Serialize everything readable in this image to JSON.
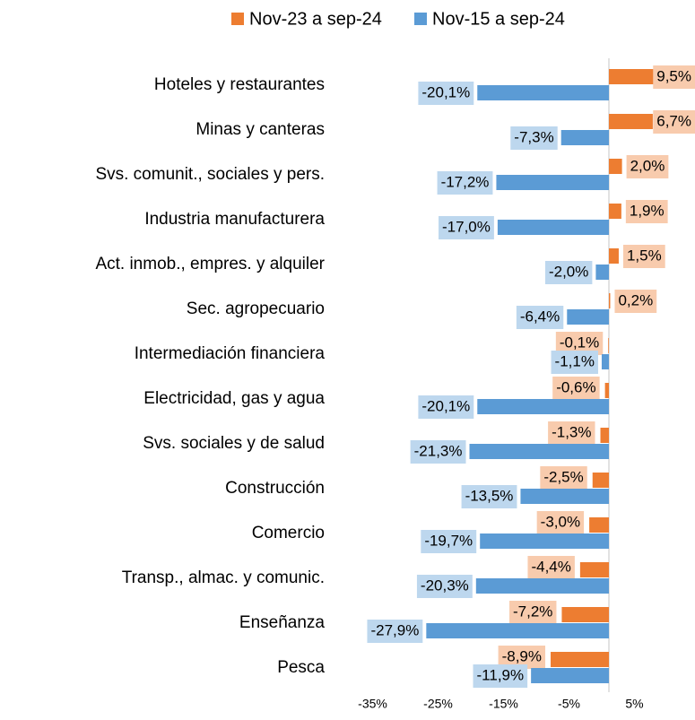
{
  "chart_data": {
    "type": "bar",
    "orientation": "horizontal",
    "categories": [
      "Hoteles y restaurantes",
      "Minas y canteras",
      "Svs. comunit., sociales y pers.",
      "Industria manufacturera",
      "Act. inmob., empres. y alquiler",
      "Sec. agropecuario",
      "Intermediación financiera",
      "Electricidad, gas y agua",
      "Svs. sociales y de salud",
      "Construcción",
      "Comercio",
      "Transp., almac. y comunic.",
      "Enseñanza",
      "Pesca"
    ],
    "series": [
      {
        "name": "Nov-23 a sep-24",
        "color": "#ed7d31",
        "label_color": "#f8cbad",
        "values": [
          9.5,
          6.7,
          2.0,
          1.9,
          1.5,
          0.2,
          -0.1,
          -0.6,
          -1.3,
          -2.5,
          -3.0,
          -4.4,
          -7.2,
          -8.9
        ],
        "value_labels": [
          "9,5%",
          "6,7%",
          "2,0%",
          "1,9%",
          "1,5%",
          "0,2%",
          "-0,1%",
          "-0,6%",
          "-1,3%",
          "-2,5%",
          "-3,0%",
          "-4,4%",
          "-7,2%",
          "-8,9%"
        ]
      },
      {
        "name": "Nov-15 a sep-24",
        "color": "#5b9bd5",
        "label_color": "#bdd7ee",
        "values": [
          -20.1,
          -7.3,
          -17.2,
          -17.0,
          -2.0,
          -6.4,
          -1.1,
          -20.1,
          -21.3,
          -13.5,
          -19.7,
          -20.3,
          -27.9,
          -11.9
        ],
        "value_labels": [
          "-20,1%",
          "-7,3%",
          "-17,2%",
          "-17,0%",
          "-2,0%",
          "-6,4%",
          "-1,1%",
          "-20,1%",
          "-21,3%",
          "-13,5%",
          "-19,7%",
          "-20,3%",
          "-27,9%",
          "-11,9%"
        ]
      }
    ],
    "xlim": [
      -35,
      10
    ],
    "xticks": [
      {
        "value": -35,
        "label": "-35%"
      },
      {
        "value": -25,
        "label": "-25%"
      },
      {
        "value": -15,
        "label": "-15%"
      },
      {
        "value": -5,
        "label": "-5%"
      },
      {
        "value": 5,
        "label": "5%"
      }
    ],
    "legend": "top"
  }
}
